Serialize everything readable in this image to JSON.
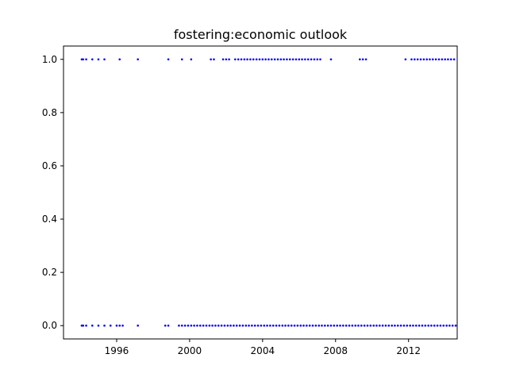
{
  "chart_data": {
    "type": "scatter",
    "title": "fostering:economic outlook",
    "xlabel": "",
    "ylabel": "",
    "x_axis_type": "date",
    "xlim": [
      "1993-02-01",
      "2014-09-01"
    ],
    "ylim": [
      -0.05,
      1.05
    ],
    "x_ticks": [
      "1996",
      "2000",
      "2004",
      "2008",
      "2012"
    ],
    "y_ticks": [
      "0.0",
      "0.2",
      "0.4",
      "0.6",
      "0.8",
      "1.0"
    ],
    "grid": false,
    "legend": "none",
    "marker_color": "#0000ff",
    "series": [
      {
        "values_at_1": [
          "1994-02-01",
          "1994-03-01",
          "1994-05-01",
          "1994-09-01",
          "1995-01-01",
          "1995-05-01",
          "1996-03-01",
          "1997-03-01",
          "1998-11-01",
          "1999-08-01",
          "2000-02-01",
          "2001-03-01",
          "2001-05-01",
          "2001-11-01",
          "2002-01-01",
          "2002-03-01",
          "2002-07-01",
          "2002-09-01",
          "2002-11-01",
          "2003-01-01",
          "2003-03-01",
          "2003-05-01",
          "2003-07-01",
          "2003-09-01",
          "2003-11-01",
          "2004-01-01",
          "2004-03-01",
          "2004-05-01",
          "2004-07-01",
          "2004-09-01",
          "2004-11-01",
          "2005-01-01",
          "2005-03-01",
          "2005-05-01",
          "2005-07-01",
          "2005-09-01",
          "2005-11-01",
          "2006-01-01",
          "2006-03-01",
          "2006-05-01",
          "2006-07-01",
          "2006-09-01",
          "2006-11-01",
          "2007-01-01",
          "2007-03-01",
          "2007-10-01",
          "2009-05-01",
          "2009-07-01",
          "2009-09-01",
          "2011-11-01",
          "2012-03-01",
          "2012-05-01",
          "2012-07-01",
          "2012-09-01",
          "2012-11-01",
          "2013-01-01",
          "2013-03-01",
          "2013-05-01",
          "2013-07-01",
          "2013-09-01",
          "2013-11-01",
          "2014-01-01",
          "2014-03-01",
          "2014-05-01",
          "2014-07-01"
        ],
        "values_at_0": [
          "1994-02-01",
          "1994-03-01",
          "1994-05-01",
          "1994-09-01",
          "1995-01-01",
          "1995-05-01",
          "1995-09-01",
          "1996-01-01",
          "1996-03-01",
          "1996-05-01",
          "1997-03-01",
          "1998-09-01",
          "1998-11-01",
          "1999-06-01",
          "1999-08-01",
          "1999-10-01",
          "1999-12-01",
          "2000-02-01",
          "2000-04-01",
          "2000-06-01",
          "2000-08-01",
          "2000-10-01",
          "2000-12-01",
          "2001-02-01",
          "2001-04-01",
          "2001-06-01",
          "2001-08-01",
          "2001-10-01",
          "2001-12-01",
          "2002-02-01",
          "2002-04-01",
          "2002-06-01",
          "2002-08-01",
          "2002-10-01",
          "2002-12-01",
          "2003-02-01",
          "2003-04-01",
          "2003-06-01",
          "2003-08-01",
          "2003-10-01",
          "2003-12-01",
          "2004-02-01",
          "2004-04-01",
          "2004-06-01",
          "2004-08-01",
          "2004-10-01",
          "2004-12-01",
          "2005-02-01",
          "2005-04-01",
          "2005-06-01",
          "2005-08-01",
          "2005-10-01",
          "2005-12-01",
          "2006-02-01",
          "2006-04-01",
          "2006-06-01",
          "2006-08-01",
          "2006-10-01",
          "2006-12-01",
          "2007-02-01",
          "2007-04-01",
          "2007-06-01",
          "2007-08-01",
          "2007-10-01",
          "2007-12-01",
          "2008-02-01",
          "2008-04-01",
          "2008-06-01",
          "2008-08-01",
          "2008-10-01",
          "2008-12-01",
          "2009-02-01",
          "2009-04-01",
          "2009-06-01",
          "2009-08-01",
          "2009-10-01",
          "2009-12-01",
          "2010-02-01",
          "2010-04-01",
          "2010-06-01",
          "2010-08-01",
          "2010-10-01",
          "2010-12-01",
          "2011-02-01",
          "2011-04-01",
          "2011-06-01",
          "2011-08-01",
          "2011-10-01",
          "2011-12-01",
          "2012-02-01",
          "2012-04-01",
          "2012-06-01",
          "2012-08-01",
          "2012-10-01",
          "2012-12-01",
          "2013-02-01",
          "2013-04-01",
          "2013-06-01",
          "2013-08-01",
          "2013-10-01",
          "2013-12-01",
          "2014-02-01",
          "2014-04-01",
          "2014-06-01",
          "2014-08-01"
        ]
      }
    ]
  }
}
